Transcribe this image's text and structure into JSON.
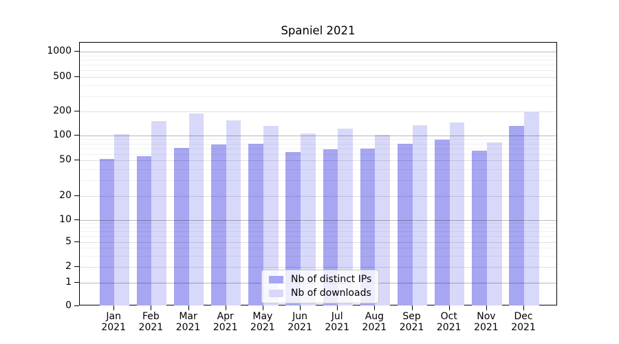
{
  "chart_data": {
    "type": "bar",
    "title": "Spaniel 2021",
    "categories": [
      "Jan 2021",
      "Feb 2021",
      "Mar 2021",
      "Apr 2021",
      "May 2021",
      "Jun 2021",
      "Jul 2021",
      "Aug 2021",
      "Sep 2021",
      "Oct 2021",
      "Nov 2021",
      "Dec 2021"
    ],
    "series": [
      {
        "name": "Nb of distinct IPs",
        "color": "#a6a6f2",
        "values": [
          52,
          56,
          71,
          78,
          79,
          63,
          68,
          69,
          79,
          89,
          65,
          133
        ]
      },
      {
        "name": "Nb of downloads",
        "color": "#d8d8fa",
        "values": [
          105,
          152,
          189,
          155,
          133,
          107,
          122,
          101,
          135,
          145,
          82,
          197
        ]
      }
    ],
    "yscale": "symlog",
    "yticks": [
      0,
      1,
      2,
      5,
      10,
      20,
      50,
      100,
      200,
      500,
      1000
    ],
    "ylim": [
      0,
      1273
    ],
    "grid": true,
    "legend_position": "lower center",
    "colors": {
      "distinct_ips": "#a6a6f2",
      "downloads": "#d8d8fa",
      "axis": "#000000",
      "grid_major": "#b8b8b8",
      "grid_minor": "#f0f0f0"
    }
  }
}
